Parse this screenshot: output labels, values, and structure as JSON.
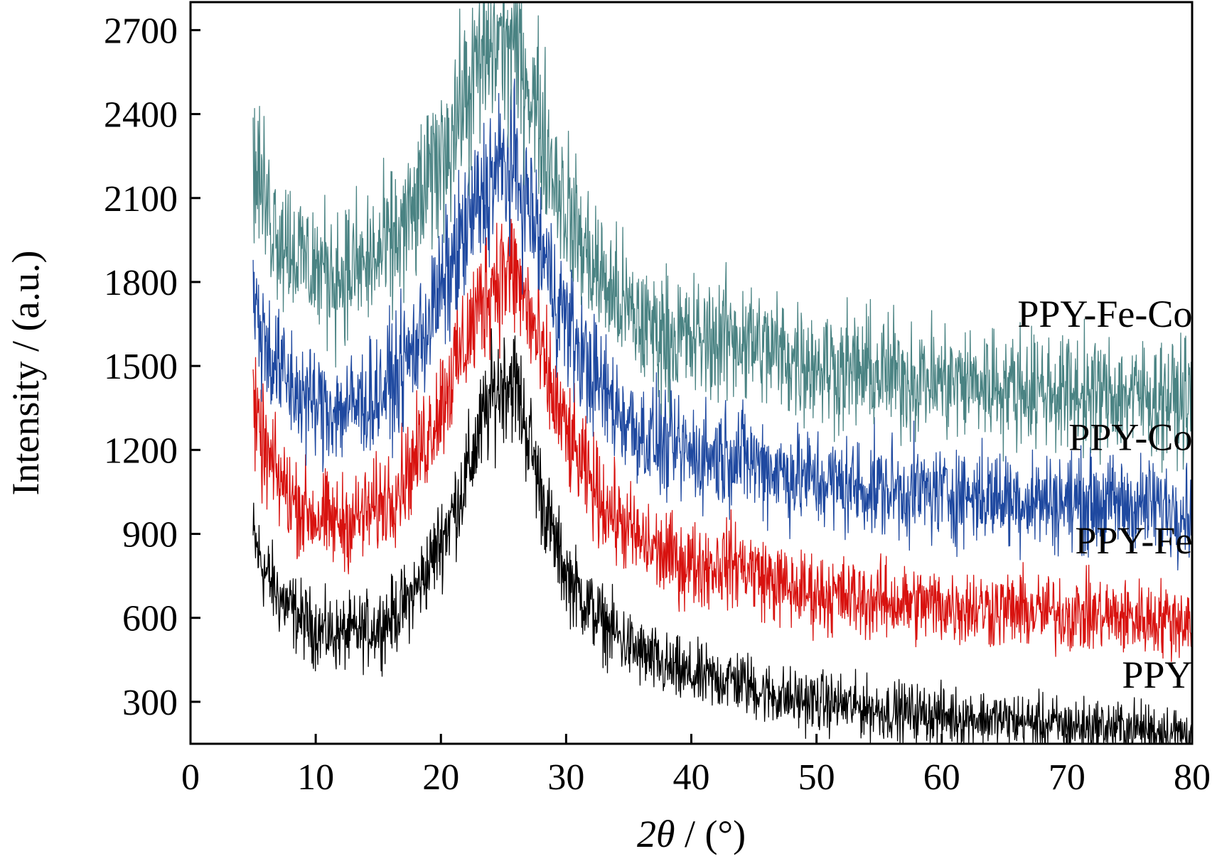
{
  "chart_data": {
    "type": "line",
    "xlabel_prefix": "2",
    "xlabel_var": "θ",
    "xlabel_suffix": " / (°)",
    "ylabel": "Intensity / (a.u.)",
    "xlim": [
      0,
      80
    ],
    "ylim": [
      150,
      2800
    ],
    "xticks": [
      0,
      10,
      20,
      30,
      40,
      50,
      60,
      70,
      80
    ],
    "yticks": [
      300,
      600,
      900,
      1200,
      1500,
      1800,
      2100,
      2400,
      2700
    ],
    "grid": false,
    "legend": "none",
    "series": [
      {
        "name": "PPY",
        "color": "#000000",
        "x": [
          5,
          6,
          7,
          8,
          9,
          10,
          11,
          12,
          13,
          14,
          15,
          16,
          17,
          18,
          19,
          20,
          21,
          22,
          23,
          24,
          25,
          25.5,
          26,
          27,
          28,
          29,
          30,
          31,
          32,
          33,
          34,
          35,
          36,
          38,
          40,
          42,
          43,
          44,
          45,
          46,
          48,
          50,
          52,
          55,
          58,
          60,
          62,
          65,
          68,
          70,
          72,
          75,
          78,
          80
        ],
        "y": [
          880,
          760,
          680,
          630,
          590,
          560,
          545,
          540,
          545,
          555,
          570,
          600,
          640,
          700,
          780,
          880,
          980,
          1100,
          1250,
          1380,
          1450,
          1460,
          1430,
          1250,
          1050,
          880,
          760,
          690,
          630,
          580,
          540,
          500,
          470,
          420,
          390,
          380,
          385,
          370,
          350,
          330,
          310,
          300,
          290,
          270,
          260,
          250,
          245,
          235,
          220,
          215,
          210,
          205,
          195,
          185
        ]
      },
      {
        "name": "PPY-Fe",
        "color": "#d8120f",
        "x": [
          5,
          6,
          7,
          8,
          9,
          10,
          11,
          12,
          13,
          14,
          15,
          16,
          17,
          18,
          19,
          20,
          21,
          22,
          23,
          24,
          25,
          26,
          27,
          28,
          29,
          30,
          31,
          32,
          33,
          34,
          35,
          36,
          38,
          40,
          42,
          43,
          44,
          45,
          46,
          48,
          50,
          52,
          55,
          58,
          60,
          62,
          65,
          68,
          70,
          72,
          75,
          78,
          80
        ],
        "y": [
          1320,
          1180,
          1100,
          1030,
          990,
          960,
          945,
          940,
          950,
          970,
          1000,
          1040,
          1100,
          1170,
          1260,
          1370,
          1480,
          1590,
          1700,
          1800,
          1840,
          1820,
          1700,
          1530,
          1380,
          1260,
          1160,
          1080,
          1010,
          960,
          910,
          870,
          820,
          790,
          790,
          800,
          790,
          770,
          740,
          700,
          690,
          675,
          660,
          650,
          645,
          640,
          630,
          620,
          615,
          610,
          600,
          595,
          590
        ]
      },
      {
        "name": "PPY-Co",
        "color": "#1f49a0",
        "x": [
          5,
          6,
          7,
          8,
          9,
          10,
          11,
          12,
          13,
          14,
          15,
          16,
          17,
          18,
          19,
          20,
          21,
          22,
          23,
          24,
          25,
          26,
          27,
          28,
          29,
          30,
          31,
          32,
          33,
          34,
          35,
          36,
          38,
          40,
          42,
          43,
          44,
          45,
          46,
          48,
          50,
          52,
          55,
          58,
          60,
          62,
          65,
          68,
          70,
          72,
          75,
          78,
          80
        ],
        "y": [
          1720,
          1580,
          1490,
          1430,
          1390,
          1360,
          1350,
          1345,
          1355,
          1375,
          1400,
          1440,
          1500,
          1570,
          1660,
          1760,
          1870,
          1980,
          2080,
          2170,
          2210,
          2190,
          2080,
          1920,
          1780,
          1660,
          1560,
          1480,
          1410,
          1350,
          1300,
          1260,
          1210,
          1185,
          1180,
          1190,
          1180,
          1160,
          1140,
          1110,
          1090,
          1075,
          1060,
          1050,
          1045,
          1040,
          1030,
          1020,
          1015,
          1010,
          1005,
          995,
          990
        ]
      },
      {
        "name": "PPY-Fe-Co",
        "color": "#4a8383",
        "x": [
          5,
          6,
          7,
          8,
          9,
          10,
          11,
          12,
          13,
          14,
          15,
          16,
          17,
          18,
          19,
          20,
          21,
          22,
          23,
          24,
          25,
          26,
          27,
          28,
          29,
          30,
          31,
          32,
          33,
          34,
          35,
          36,
          38,
          40,
          42,
          43,
          44,
          45,
          46,
          48,
          50,
          52,
          55,
          58,
          60,
          62,
          65,
          68,
          70,
          72,
          75,
          78,
          80
        ],
        "y": [
          2250,
          2080,
          1990,
          1930,
          1880,
          1850,
          1835,
          1830,
          1840,
          1860,
          1890,
          1930,
          1990,
          2060,
          2150,
          2250,
          2360,
          2460,
          2560,
          2640,
          2670,
          2640,
          2520,
          2350,
          2200,
          2070,
          1960,
          1870,
          1800,
          1740,
          1690,
          1650,
          1610,
          1590,
          1595,
          1605,
          1600,
          1580,
          1560,
          1530,
          1510,
          1490,
          1470,
          1455,
          1445,
          1440,
          1430,
          1415,
          1405,
          1400,
          1395,
          1385,
          1380
        ]
      }
    ],
    "annotations": [
      {
        "text": "PPY-Fe-Co",
        "x": 79,
        "y": 1640
      },
      {
        "text": "PPY-Co",
        "x": 79,
        "y": 1200
      },
      {
        "text": "PPY-Fe",
        "x": 79,
        "y": 830
      },
      {
        "text": "PPY",
        "x": 79,
        "y": 350
      }
    ]
  }
}
